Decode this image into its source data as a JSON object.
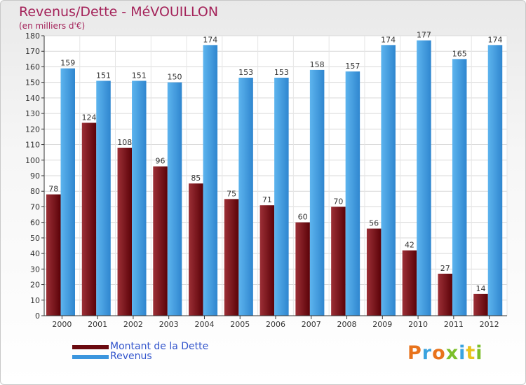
{
  "title": "Revenus/Dette - MéVOUILLON",
  "subtitle": "(en milliers d'€)",
  "legend": [
    {
      "label": "Montant de la Dette",
      "color": "#6b0a10"
    },
    {
      "label": "Revenus",
      "color": "#3c96de"
    }
  ],
  "logo": {
    "text": "Proxiti",
    "letters": [
      {
        "ch": "P",
        "color": "#e8731c"
      },
      {
        "ch": "r",
        "color": "#3aa3df"
      },
      {
        "ch": "o",
        "color": "#e8731c"
      },
      {
        "ch": "x",
        "color": "#7cbf2a"
      },
      {
        "ch": "i",
        "color": "#3aa3df"
      },
      {
        "ch": "t",
        "color": "#e8c31c"
      },
      {
        "ch": "i",
        "color": "#7cbf2a"
      }
    ]
  },
  "chart_data": {
    "type": "bar",
    "title": "Revenus/Dette - MéVOUILLON",
    "subtitle": "(en milliers d'€)",
    "categories": [
      "2000",
      "2001",
      "2002",
      "2003",
      "2004",
      "2005",
      "2006",
      "2007",
      "2008",
      "2009",
      "2010",
      "2011",
      "2012"
    ],
    "series": [
      {
        "name": "Montant de la Dette",
        "color": "#6b0a10",
        "values": [
          78,
          124,
          108,
          96,
          85,
          75,
          71,
          60,
          70,
          56,
          42,
          27,
          14
        ]
      },
      {
        "name": "Revenus",
        "color": "#3c96de",
        "values": [
          159,
          151,
          151,
          150,
          174,
          153,
          153,
          158,
          157,
          174,
          177,
          165,
          174
        ]
      }
    ],
    "ylim": [
      0,
      180
    ],
    "yticks": [
      0,
      10,
      20,
      30,
      40,
      50,
      60,
      70,
      80,
      90,
      100,
      110,
      120,
      130,
      140,
      150,
      160,
      170,
      180
    ],
    "grid": true,
    "legend_position": "bottom-left",
    "data_labels": true
  }
}
